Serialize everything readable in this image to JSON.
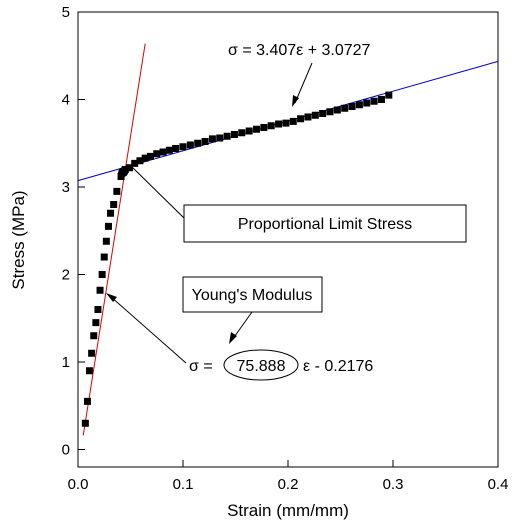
{
  "chart_data": {
    "type": "scatter",
    "xlabel": "Strain (mm/mm)",
    "ylabel": "Stress (MPa)",
    "xlim": [
      0,
      0.4
    ],
    "ylim": [
      -0.2,
      5
    ],
    "x_ticks": [
      0.0,
      0.1,
      0.2,
      0.3,
      0.4
    ],
    "x_tick_labels": [
      "0.0",
      "0.1",
      "0.2",
      "0.3",
      "0.4"
    ],
    "y_ticks": [
      0,
      1,
      2,
      3,
      4,
      5
    ],
    "y_tick_labels": [
      "0",
      "1",
      "2",
      "3",
      "4",
      "5"
    ],
    "grid": false,
    "series": [
      {
        "marker": "square",
        "color": "#000000",
        "x": [
          0.007,
          0.009,
          0.011,
          0.013,
          0.015,
          0.017,
          0.019,
          0.021,
          0.023,
          0.025,
          0.027,
          0.029,
          0.031,
          0.034,
          0.037,
          0.041,
          0.045,
          0.049,
          0.054,
          0.059,
          0.064,
          0.069,
          0.075,
          0.081,
          0.087,
          0.093,
          0.1,
          0.107,
          0.114,
          0.121,
          0.128,
          0.135,
          0.142,
          0.149,
          0.156,
          0.163,
          0.17,
          0.177,
          0.184,
          0.191,
          0.198,
          0.205,
          0.212,
          0.219,
          0.226,
          0.233,
          0.24,
          0.247,
          0.254,
          0.261,
          0.268,
          0.275,
          0.282,
          0.289,
          0.296
        ],
        "y": [
          0.3,
          0.55,
          0.9,
          1.1,
          1.3,
          1.45,
          1.6,
          1.82,
          2.0,
          2.2,
          2.38,
          2.55,
          2.7,
          2.8,
          2.95,
          3.12,
          3.2,
          3.22,
          3.27,
          3.3,
          3.33,
          3.35,
          3.38,
          3.4,
          3.42,
          3.44,
          3.46,
          3.48,
          3.5,
          3.52,
          3.55,
          3.56,
          3.58,
          3.6,
          3.62,
          3.64,
          3.66,
          3.68,
          3.7,
          3.72,
          3.73,
          3.75,
          3.78,
          3.8,
          3.82,
          3.84,
          3.86,
          3.88,
          3.9,
          3.92,
          3.94,
          3.96,
          3.98,
          4.0,
          4.05
        ]
      }
    ],
    "fit_lines": [
      {
        "equation": "σ = 3.407ε + 3.0727",
        "color": "#0000cc",
        "slope": 3.407,
        "intercept": 3.0727,
        "x_range": [
          0,
          0.4
        ]
      },
      {
        "equation_prefix": "σ =",
        "equation_highlight": "75.888",
        "equation_suffix": "ε - 0.2176",
        "color": "#dd0000",
        "slope": 75.888,
        "intercept": -0.2176,
        "x_range": [
          0.005,
          0.064
        ]
      }
    ],
    "proportional_limit_point": {
      "x": 0.043,
      "y": 3.17
    },
    "annotations": {
      "proportional_limit_label": "Proportional Limit Stress",
      "youngs_modulus_label": "Young's Modulus"
    }
  }
}
